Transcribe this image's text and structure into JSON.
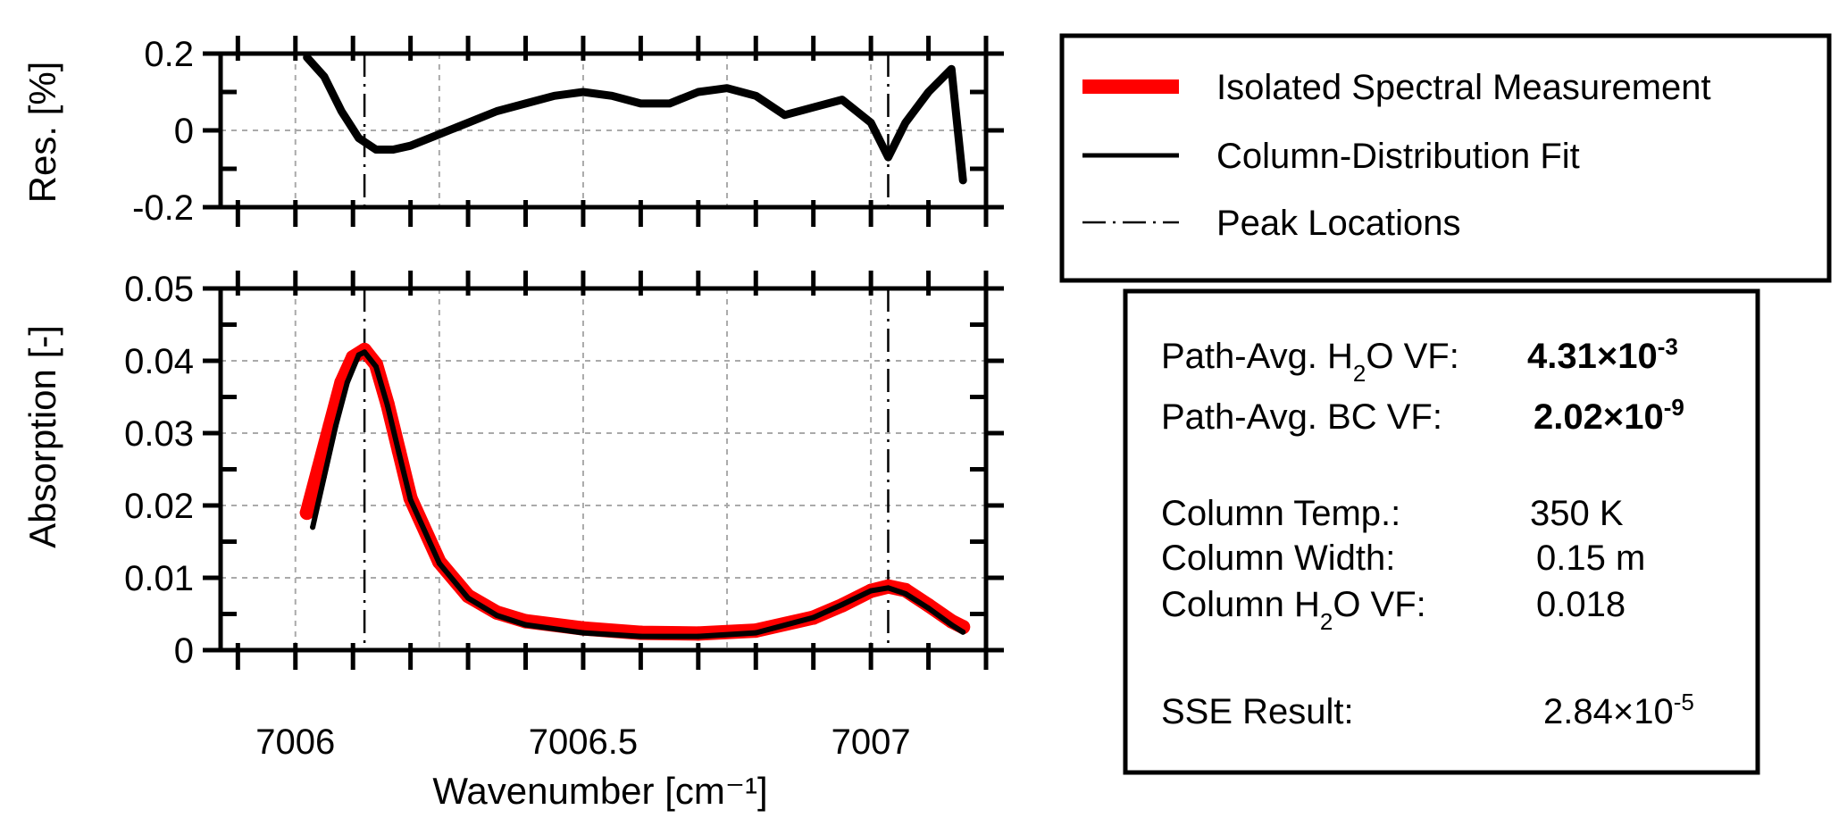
{
  "colors": {
    "measurement": "#ff0000",
    "fit": "#000000",
    "residual": "#000000",
    "grid": "#aaaaaa",
    "frame": "#000000"
  },
  "chart_data": [
    {
      "panel": "residual",
      "type": "line",
      "title": "",
      "xlabel": "",
      "ylabel": "Res. [%]",
      "xlim": [
        7005.87,
        7007.2
      ],
      "ylim": [
        -0.2,
        0.2
      ],
      "yticks": [
        -0.2,
        0,
        0.2
      ],
      "ytick_labels": [
        "-0.2",
        "0",
        "0.2"
      ],
      "grid": true,
      "series": [
        {
          "name": "",
          "x": [
            7006.02,
            7006.05,
            7006.08,
            7006.11,
            7006.14,
            7006.17,
            7006.2,
            7006.25,
            7006.3,
            7006.35,
            7006.4,
            7006.45,
            7006.5,
            7006.55,
            7006.6,
            7006.65,
            7006.7,
            7006.75,
            7006.8,
            7006.85,
            7006.9,
            7006.95,
            7007.0,
            7007.03,
            7007.06,
            7007.1,
            7007.14,
            7007.16
          ],
          "y": [
            0.19,
            0.14,
            0.05,
            -0.02,
            -0.05,
            -0.05,
            -0.04,
            -0.01,
            0.02,
            0.05,
            0.07,
            0.09,
            0.1,
            0.09,
            0.07,
            0.07,
            0.1,
            0.11,
            0.09,
            0.04,
            0.06,
            0.08,
            0.02,
            -0.07,
            0.02,
            0.1,
            0.16,
            -0.13
          ]
        }
      ],
      "vlines": [
        7006.12,
        7007.03
      ]
    },
    {
      "panel": "absorption",
      "type": "line",
      "title": "",
      "xlabel": "Wavenumber [cm⁻¹]",
      "ylabel": "Absorption [-]",
      "xlim": [
        7005.87,
        7007.2
      ],
      "ylim": [
        0,
        0.05
      ],
      "xticks": [
        7006,
        7006.5,
        7007
      ],
      "xtick_labels": [
        "7006",
        "7006.5",
        "7007"
      ],
      "yticks": [
        0,
        0.01,
        0.02,
        0.03,
        0.04,
        0.05
      ],
      "ytick_labels": [
        "0",
        "0.01",
        "0.02",
        "0.03",
        "0.04",
        "0.05"
      ],
      "grid": true,
      "series": [
        {
          "name": "Isolated Spectral Measurement",
          "x": [
            7006.02,
            7006.04,
            7006.06,
            7006.08,
            7006.1,
            7006.12,
            7006.14,
            7006.16,
            7006.18,
            7006.2,
            7006.25,
            7006.3,
            7006.35,
            7006.4,
            7006.5,
            7006.6,
            7006.7,
            7006.8,
            7006.9,
            7006.95,
            7007.0,
            7007.03,
            7007.06,
            7007.1,
            7007.14,
            7007.16
          ],
          "y": [
            0.019,
            0.025,
            0.031,
            0.037,
            0.0405,
            0.0415,
            0.0395,
            0.034,
            0.0275,
            0.021,
            0.0122,
            0.0075,
            0.0052,
            0.004,
            0.003,
            0.0024,
            0.0023,
            0.0027,
            0.0045,
            0.0062,
            0.0082,
            0.0088,
            0.0083,
            0.0062,
            0.004,
            0.0032
          ]
        },
        {
          "name": "Column-Distribution Fit",
          "x": [
            7006.03,
            7006.05,
            7006.07,
            7006.09,
            7006.11,
            7006.12,
            7006.14,
            7006.16,
            7006.18,
            7006.2,
            7006.25,
            7006.3,
            7006.35,
            7006.4,
            7006.5,
            7006.6,
            7006.7,
            7006.8,
            7006.9,
            7006.95,
            7007.0,
            7007.03,
            7007.06,
            7007.1,
            7007.14,
            7007.16
          ],
          "y": [
            0.017,
            0.024,
            0.031,
            0.037,
            0.0408,
            0.0412,
            0.0392,
            0.0338,
            0.0272,
            0.0208,
            0.012,
            0.0072,
            0.0048,
            0.0035,
            0.0024,
            0.0019,
            0.0019,
            0.0024,
            0.0045,
            0.0063,
            0.0082,
            0.0086,
            0.0078,
            0.0058,
            0.0035,
            0.0025
          ]
        }
      ],
      "vlines": [
        7006.12,
        7007.03
      ]
    }
  ],
  "legend": {
    "placement": "top-right",
    "items": [
      {
        "label": "Isolated Spectral Measurement",
        "style": "thick-red"
      },
      {
        "label": "Column-Distribution Fit",
        "style": "solid-black"
      },
      {
        "label": "Peak Locations",
        "style": "dashed-black"
      }
    ]
  },
  "results": {
    "h2o_label": "Path-Avg. H",
    "h2o_label_sub": "2",
    "h2o_label_end": "O VF: ",
    "h2o_value": "4.31×10",
    "h2o_exp": "-3",
    "bc_label": "Path-Avg. BC VF:",
    "bc_value": "2.02×10",
    "bc_exp": "-9",
    "temp_label": "Column Temp.:",
    "temp_value": "350 K",
    "width_label": "Column Width:",
    "width_value": "0.15 m",
    "col_h2o_label": "Column H",
    "col_h2o_sub": "2",
    "col_h2o_label_end": "O VF:",
    "col_h2o_value": "0.018",
    "sse_label": "SSE Result:",
    "sse_value": "2.84×10",
    "sse_exp": "-5"
  }
}
